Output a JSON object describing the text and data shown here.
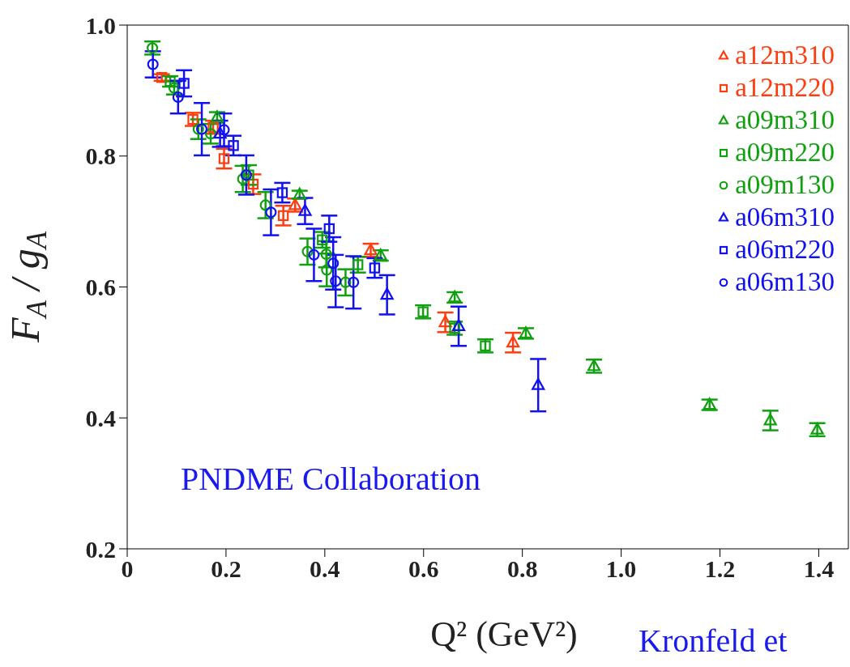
{
  "chart_data": {
    "type": "scatter",
    "xlabel": "Q² (GeV²)",
    "ylabel": "F$_{A}$ / g$_{A}$",
    "xlim": [
      0,
      1.46
    ],
    "xticks": [
      0,
      0.2,
      0.4,
      0.6,
      0.8,
      {
        "value": 1,
        "label": "1.0"
      },
      1.2,
      1.4
    ],
    "ylim": [
      0.2,
      1.0
    ],
    "yticks": [
      0.2,
      0.4,
      0.6,
      0.8,
      {
        "value": 1,
        "label": "1.0"
      }
    ],
    "grid": false,
    "legend": "top right",
    "annotations": [
      "PNDME Collaboration",
      "Kronfeld et"
    ],
    "series": [
      {
        "name": "a12m310",
        "color": "#ff3c10",
        "marker": "triangle",
        "x": [
          0.34,
          0.493,
          0.644,
          0.781
        ],
        "values": [
          0.725,
          0.656,
          0.546,
          0.515
        ],
        "errors": [
          0.01,
          0.01,
          0.015,
          0.015
        ]
      },
      {
        "name": "a12m220",
        "color": "#ff3c10",
        "marker": "square",
        "x": [
          0.07,
          0.133,
          0.174,
          0.196,
          0.255,
          0.316
        ],
        "values": [
          0.92,
          0.856,
          0.844,
          0.796,
          0.757,
          0.709
        ],
        "errors": [
          0.005,
          0.01,
          0.01,
          0.015,
          0.015,
          0.015
        ]
      },
      {
        "name": "a09m310",
        "color": "#10a010",
        "marker": "triangle",
        "x": [
          0.182,
          0.349,
          0.513,
          0.663,
          0.807,
          0.945,
          1.179,
          1.302,
          1.397
        ],
        "values": [
          0.859,
          0.741,
          0.648,
          0.584,
          0.529,
          0.479,
          0.42,
          0.396,
          0.382
        ],
        "errors": [
          0.008,
          0.006,
          0.008,
          0.008,
          0.008,
          0.01,
          0.008,
          0.015,
          0.01
        ]
      },
      {
        "name": "a09m220",
        "color": "#10a010",
        "marker": "square",
        "x": [
          0.087,
          0.246,
          0.395,
          0.467,
          0.599,
          0.663,
          0.725
        ],
        "values": [
          0.914,
          0.771,
          0.672,
          0.634,
          0.562,
          0.537,
          0.51
        ],
        "errors": [
          0.008,
          0.015,
          0.012,
          0.012,
          0.01,
          0.01,
          0.01
        ]
      },
      {
        "name": "a09m130",
        "color": "#10a010",
        "marker": "circle",
        "x": [
          0.051,
          0.095,
          0.144,
          0.169,
          0.234,
          0.28,
          0.365,
          0.403,
          0.404,
          0.442
        ],
        "values": [
          0.965,
          0.904,
          0.841,
          0.834,
          0.765,
          0.725,
          0.654,
          0.65,
          0.626,
          0.607
        ],
        "errors": [
          0.01,
          0.01,
          0.015,
          0.015,
          0.02,
          0.02,
          0.02,
          0.02,
          0.025,
          0.02
        ]
      },
      {
        "name": "a06m310",
        "color": "#1010f0",
        "marker": "triangle",
        "x": [
          0.188,
          0.36,
          0.526,
          0.671,
          0.832
        ],
        "values": [
          0.834,
          0.716,
          0.588,
          0.54,
          0.45
        ],
        "errors": [
          0.02,
          0.02,
          0.03,
          0.03,
          0.04
        ]
      },
      {
        "name": "a06m220",
        "color": "#1010f0",
        "marker": "square",
        "x": [
          0.115,
          0.215,
          0.314,
          0.409,
          0.501
        ],
        "values": [
          0.911,
          0.816,
          0.744,
          0.689,
          0.629
        ],
        "errors": [
          0.02,
          0.015,
          0.015,
          0.02,
          0.015
        ]
      },
      {
        "name": "a06m130",
        "color": "#1010f0",
        "marker": "circle",
        "x": [
          0.052,
          0.103,
          0.151,
          0.196,
          0.241,
          0.291,
          0.378,
          0.417,
          0.422,
          0.458
        ],
        "values": [
          0.94,
          0.89,
          0.841,
          0.84,
          0.771,
          0.714,
          0.649,
          0.636,
          0.609,
          0.607
        ],
        "errors": [
          0.02,
          0.025,
          0.04,
          0.025,
          0.03,
          0.035,
          0.04,
          0.04,
          0.04,
          0.04
        ]
      }
    ]
  }
}
